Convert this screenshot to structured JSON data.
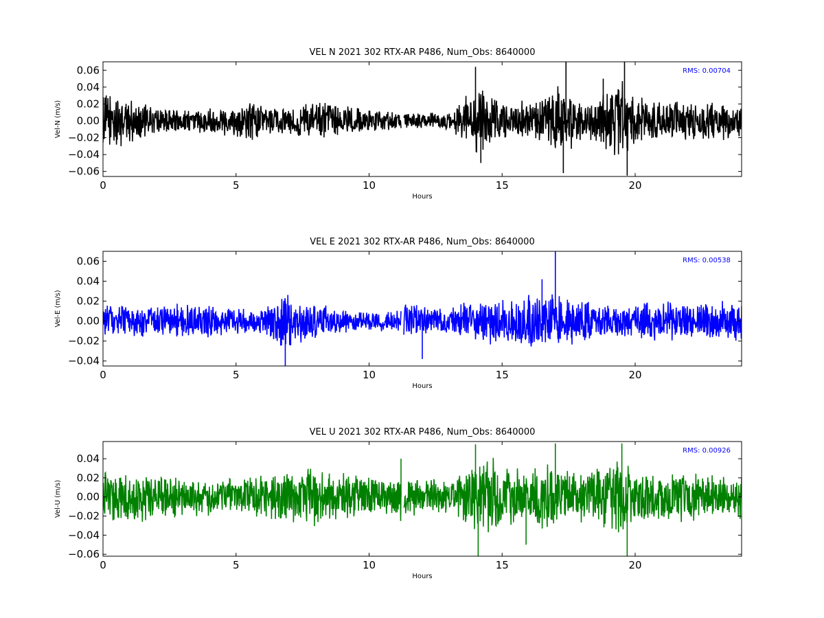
{
  "chart_data": [
    {
      "type": "line",
      "title": "VEL N 2021 302 RTX-AR  P486, Num_Obs: 8640000",
      "xlabel": "Hours",
      "ylabel": "Vel-N (m/s)",
      "xlim": [
        0,
        24
      ],
      "ylim": [
        -0.066,
        0.07
      ],
      "xticks": [
        0,
        5,
        10,
        15,
        20
      ],
      "xtick_labels": [
        "0",
        "5",
        "10",
        "15",
        "20"
      ],
      "yticks": [
        -0.06,
        -0.04,
        -0.02,
        0.0,
        0.02,
        0.04,
        0.06
      ],
      "ytick_labels": [
        "−0.06",
        "−0.04",
        "−0.02",
        "0.00",
        "0.02",
        "0.04",
        "0.06"
      ],
      "annotation": "RMS:  0.00704",
      "rms": 0.00704,
      "color": "#000000",
      "grid": false,
      "gap": [
        11.2,
        11.3
      ],
      "envelope": {
        "x": [
          0,
          0.5,
          1,
          1.5,
          2,
          3,
          4,
          5,
          5.5,
          6,
          7,
          8,
          9,
          10,
          11,
          11.2,
          11.3,
          12,
          13,
          13.5,
          14,
          14.5,
          15,
          16,
          16.5,
          17,
          17.4,
          18,
          18.5,
          19,
          19.5,
          20,
          21,
          22,
          23,
          24
        ],
        "values": [
          0.035,
          0.035,
          0.028,
          0.022,
          0.018,
          0.015,
          0.017,
          0.02,
          0.025,
          0.02,
          0.018,
          0.025,
          0.02,
          0.015,
          0.012,
          0.012,
          0.01,
          0.01,
          0.012,
          0.025,
          0.048,
          0.035,
          0.025,
          0.025,
          0.03,
          0.045,
          0.052,
          0.025,
          0.03,
          0.045,
          0.052,
          0.03,
          0.025,
          0.025,
          0.025,
          0.025
        ]
      },
      "spikes": [
        {
          "x": 17.4,
          "y": 0.07
        },
        {
          "x": 19.6,
          "y": 0.07
        },
        {
          "x": 19.7,
          "y": -0.065
        },
        {
          "x": 14.0,
          "y": 0.064
        },
        {
          "x": 14.2,
          "y": -0.05
        },
        {
          "x": 17.3,
          "y": -0.062
        },
        {
          "x": 18.8,
          "y": 0.05
        }
      ]
    },
    {
      "type": "line",
      "title": "VEL E 2021 302 RTX-AR  P486, Num_Obs: 8640000",
      "xlabel": "Hours",
      "ylabel": "Vel-E (m/s)",
      "xlim": [
        0,
        24
      ],
      "ylim": [
        -0.045,
        0.07
      ],
      "xticks": [
        0,
        5,
        10,
        15,
        20
      ],
      "xtick_labels": [
        "0",
        "5",
        "10",
        "15",
        "20"
      ],
      "yticks": [
        -0.04,
        -0.02,
        0.0,
        0.02,
        0.04,
        0.06
      ],
      "ytick_labels": [
        "−0.04",
        "−0.02",
        "0.00",
        "0.02",
        "0.04",
        "0.06"
      ],
      "annotation": "RMS:  0.00538",
      "rms": 0.00538,
      "color": "#0000ff",
      "grid": false,
      "gap": [
        11.2,
        11.3
      ],
      "envelope": {
        "x": [
          0,
          1,
          2,
          3,
          4,
          5,
          5.5,
          6,
          6.5,
          7,
          7.5,
          8,
          8.5,
          9,
          10,
          11,
          11.2,
          11.3,
          12,
          13,
          14,
          15,
          16,
          17,
          18,
          19,
          20,
          21,
          22,
          23,
          24
        ],
        "values": [
          0.018,
          0.018,
          0.018,
          0.018,
          0.018,
          0.015,
          0.012,
          0.015,
          0.028,
          0.03,
          0.022,
          0.018,
          0.016,
          0.012,
          0.01,
          0.012,
          0.012,
          0.018,
          0.018,
          0.015,
          0.022,
          0.025,
          0.03,
          0.03,
          0.025,
          0.018,
          0.018,
          0.022,
          0.022,
          0.022,
          0.022
        ]
      },
      "spikes": [
        {
          "x": 17.0,
          "y": 0.07
        },
        {
          "x": 6.85,
          "y": -0.046
        },
        {
          "x": 16.5,
          "y": 0.042
        },
        {
          "x": 12.0,
          "y": -0.038
        }
      ]
    },
    {
      "type": "line",
      "title": "VEL U 2021 302 RTX-AR  P486, Num_Obs: 8640000",
      "xlabel": "Hours",
      "ylabel": "Vel-U (m/s)",
      "xlim": [
        0,
        24
      ],
      "ylim": [
        -0.062,
        0.058
      ],
      "xticks": [
        0,
        5,
        10,
        15,
        20
      ],
      "xtick_labels": [
        "0",
        "5",
        "10",
        "15",
        "20"
      ],
      "yticks": [
        -0.06,
        -0.04,
        -0.02,
        0.0,
        0.02,
        0.04
      ],
      "ytick_labels": [
        "−0.06",
        "−0.04",
        "−0.02",
        "0.00",
        "0.02",
        "0.04"
      ],
      "annotation": "RMS:  0.00926",
      "rms": 0.00926,
      "color": "#008000",
      "grid": false,
      "gap": [
        11.2,
        11.3
      ],
      "envelope": {
        "x": [
          0,
          1,
          2,
          3,
          4,
          5,
          6,
          7,
          8,
          9,
          10,
          11,
          11.2,
          11.3,
          12,
          13,
          13.5,
          14,
          14.5,
          15,
          16,
          16.5,
          17,
          17.5,
          18,
          19,
          19.5,
          20,
          21,
          22,
          23,
          24
        ],
        "values": [
          0.03,
          0.03,
          0.025,
          0.022,
          0.02,
          0.02,
          0.025,
          0.03,
          0.035,
          0.028,
          0.022,
          0.022,
          0.04,
          0.022,
          0.02,
          0.02,
          0.028,
          0.04,
          0.045,
          0.035,
          0.028,
          0.04,
          0.04,
          0.03,
          0.028,
          0.035,
          0.045,
          0.03,
          0.028,
          0.028,
          0.028,
          0.028
        ]
      },
      "spikes": [
        {
          "x": 14.0,
          "y": 0.055
        },
        {
          "x": 14.1,
          "y": -0.062
        },
        {
          "x": 19.5,
          "y": 0.056
        },
        {
          "x": 19.7,
          "y": -0.062
        },
        {
          "x": 17.0,
          "y": 0.056
        },
        {
          "x": 11.2,
          "y": 0.04
        },
        {
          "x": 15.9,
          "y": -0.05
        }
      ]
    }
  ]
}
